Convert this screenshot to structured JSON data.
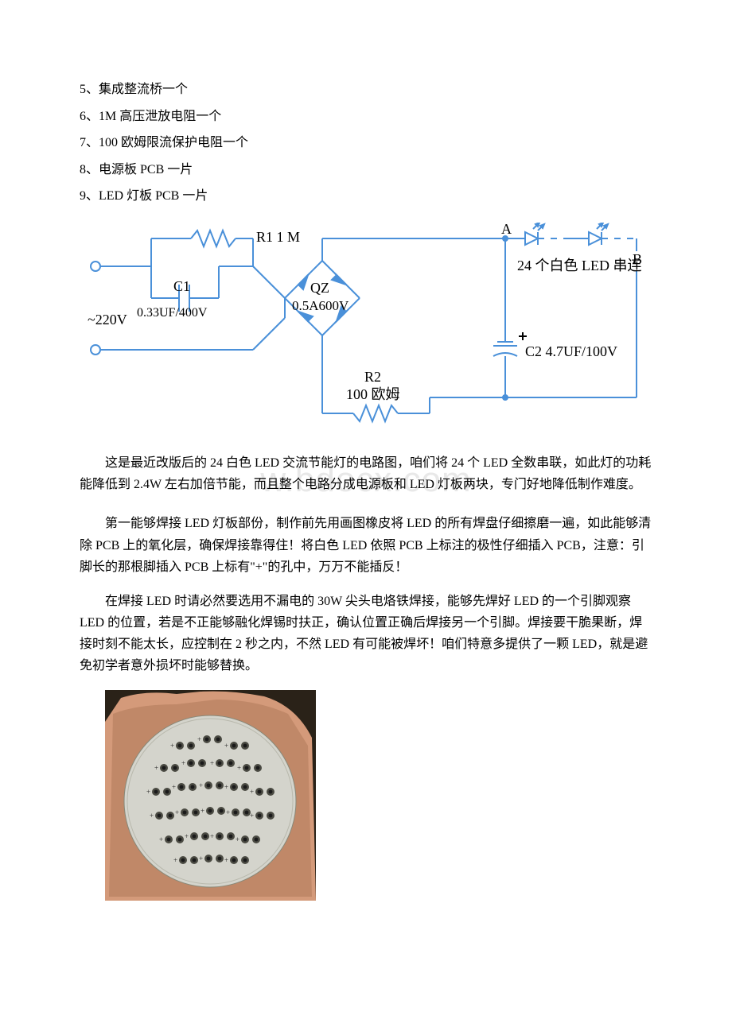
{
  "list_items": [
    "5、集成整流桥一个",
    "6、1M 高压泄放电阻一个",
    "7、100 欧姆限流保护电阻一个",
    "8、电源板 PCB 一片",
    "9、LED 灯板 PCB 一片"
  ],
  "circuit": {
    "r1_label": "R1  1 M",
    "a_label": "A",
    "b_label": "B",
    "led_label": "24 个白色 LED 串连",
    "voltage_label": "~220V",
    "c1_label": "C1",
    "c1_value": "0.33UF/400V",
    "qz_label": "QZ",
    "qz_value": "0.5A600V",
    "r2_label": "R2",
    "r2_value": "100 欧姆",
    "c2_label": "C2  4.7UF/100V",
    "line_color": "#4a90d9",
    "text_color": "#000000"
  },
  "watermark": "w.bdocx.com",
  "paragraphs": [
    "这是最近改版后的 24 白色 LED 交流节能灯的电路图，咱们将 24 个 LED 全数串联，如此灯的功耗能降低到 2.4W 左右加倍节能，而且整个电路分成电源板和 LED 灯板两块，专门好地降低制作难度。",
    "第一能够焊接 LED 灯板部份，制作前先用画图橡皮将 LED 的所有焊盘仔细擦磨一遍，如此能够清除 PCB 上的氧化层，确保焊接靠得住！将白色 LED 依照 PCB 上标注的极性仔细插入 PCB，注意：引脚长的那根脚插入 PCB 上标有\"+\"的孔中，万万不能插反！",
    "在焊接 LED 时请必然要选用不漏电的 30W 尖头电烙铁焊接，能够先焊好 LED 的一个引脚观察 LED 的位置，若是不正能够融化焊锡时扶正，确认位置正确后焊接另一个引脚。焊接要干脆果断，焊接时刻不能太长，应控制在 2 秒之内，不然 LED 有可能被焊坏！咱们特意多提供了一颗 LED，就是避免初学者意外损坏时能够替换。"
  ],
  "pcb": {
    "board_color": "#d4d4cc",
    "board_stroke": "#888878",
    "hole_fill": "#1a1a1a",
    "hole_ring": "#4a4a42",
    "plus_color": "#2a2a2a",
    "finger_color": "#d49a7a",
    "finger_shadow": "#7a4a3a"
  }
}
